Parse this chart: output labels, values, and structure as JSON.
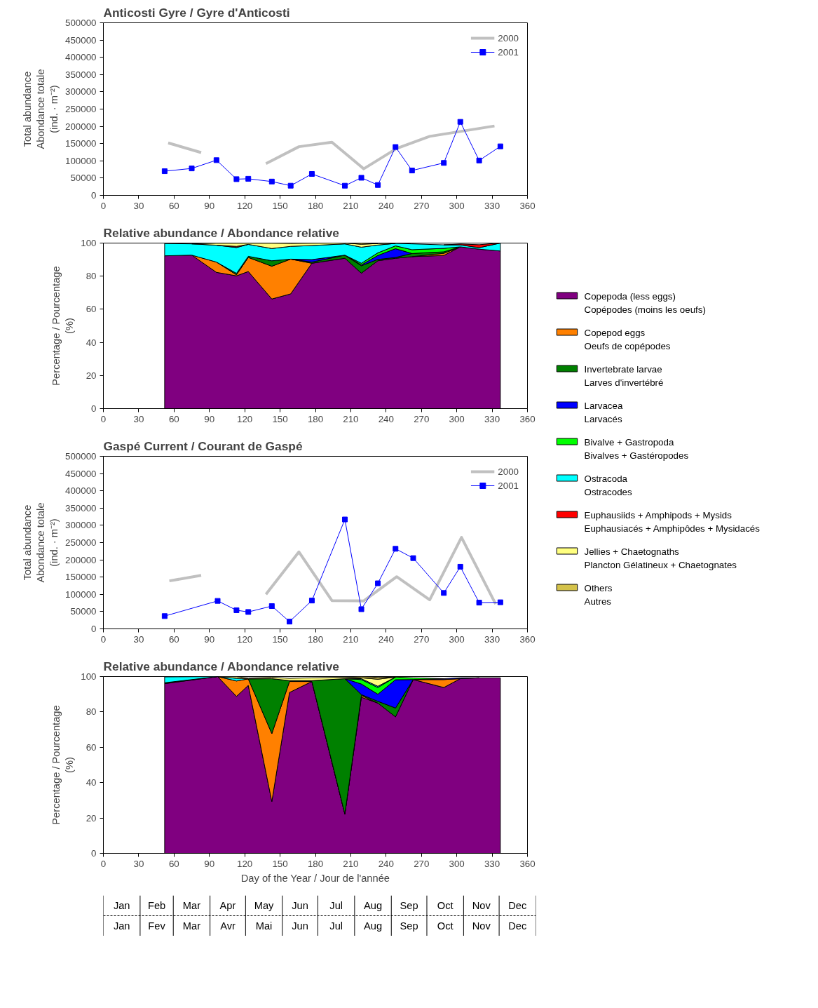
{
  "chart_data": [
    {
      "type": "line",
      "title": "Anticosti Gyre / Gyre d'Anticosti",
      "ylabel": "Total abundance\nAbondance totale\n(ind. · m⁻²)",
      "xlim": [
        0,
        360
      ],
      "xticks": [
        0,
        30,
        60,
        90,
        120,
        150,
        180,
        210,
        240,
        270,
        300,
        330,
        360
      ],
      "ylim": [
        0,
        500000
      ],
      "yticks": [
        0,
        50000,
        100000,
        150000,
        200000,
        250000,
        300000,
        350000,
        400000,
        450000,
        500000
      ],
      "legend": "top right",
      "series": [
        {
          "name": "2000",
          "color": "#c0c0c0",
          "marker": "none",
          "x": [
            55,
            83,
            110,
            138,
            166,
            194,
            221,
            249,
            277,
            332
          ],
          "values": [
            152000,
            124000,
            null,
            92000,
            141000,
            154000,
            77000,
            136000,
            171000,
            201000
          ]
        },
        {
          "name": "2001",
          "color": "#0000ff",
          "marker": "square",
          "x": [
            52,
            75,
            96,
            113,
            123,
            143,
            159,
            177,
            205,
            219,
            233,
            248,
            262,
            289,
            303,
            319,
            337
          ],
          "values": [
            70000,
            78000,
            102000,
            47000,
            48000,
            40000,
            28000,
            62000,
            28000,
            51000,
            30000,
            140000,
            72000,
            94000,
            213000,
            101000,
            142000
          ]
        }
      ]
    },
    {
      "type": "area",
      "stacked": true,
      "title": "Relative abundance / Abondance relative",
      "ylabel": "Percentage / Pourcentage\n(%)",
      "xlim": [
        0,
        360
      ],
      "xticks": [
        0,
        30,
        60,
        90,
        120,
        150,
        180,
        210,
        240,
        270,
        300,
        330,
        360
      ],
      "ylim": [
        0,
        100
      ],
      "yticks": [
        0,
        20,
        40,
        60,
        80,
        100
      ],
      "legend": "right",
      "x": [
        52,
        75,
        96,
        113,
        123,
        143,
        159,
        177,
        205,
        219,
        233,
        248,
        262,
        289,
        303,
        319,
        337
      ],
      "series": [
        {
          "name": "Copepoda (less eggs)\nCopépodes (moins les oeufs)",
          "color": "#800080",
          "values": [
            92.3,
            92.7,
            82.3,
            80.2,
            82.8,
            66.2,
            69.3,
            87.8,
            90.8,
            81.8,
            89.3,
            90.8,
            91.8,
            92.5,
            97.7,
            96.3,
            95.2
          ]
        },
        {
          "name": "Copepod eggs\nOeufs de copépodes",
          "color": "#ff8000",
          "values": [
            null,
            0,
            6.2,
            0.6,
            8.5,
            19.8,
            21,
            0,
            null,
            null,
            null,
            null,
            0,
            1.3,
            0,
            null,
            null
          ]
        },
        {
          "name": "Invertebrate larvae\nLarves d'invertébré",
          "color": "#008000",
          "values": [
            null,
            null,
            0,
            0.9,
            0.7,
            3.3,
            0,
            0.7,
            1.9,
            4.5,
            0.8,
            0.5,
            1.9,
            0.9,
            0,
            null,
            null
          ]
        },
        {
          "name": "Larvacea\nLarvacés",
          "color": "#0000ff",
          "values": [
            null,
            null,
            null,
            null,
            null,
            null,
            0,
            1.5,
            0,
            0.5,
            2.4,
            5.3,
            0,
            null,
            null,
            null,
            null
          ]
        },
        {
          "name": "Bivalve + Gastropoda\nBivalves + Gastéropodes",
          "color": "#00ff00",
          "values": [
            null,
            null,
            null,
            null,
            null,
            null,
            null,
            null,
            0,
            1.0,
            1.6,
            1.7,
            2.3,
            2.1,
            0,
            null,
            null
          ]
        },
        {
          "name": "Ostracoda\nOstracodes",
          "color": "#00ffff",
          "values": [
            7.4,
            6.8,
            10.2,
            15.6,
            7.2,
            7.4,
            7.7,
            8.5,
            6.8,
            9.7,
            4.7,
            1.5,
            3.5,
            2.1,
            1.2,
            0.9,
            4.8
          ]
        },
        {
          "name": "Euphausiids + Amphipods + Mysids\nEuphausiacés + Amphipôdes + Mysidacés",
          "color": "#ff0000",
          "values": [
            null,
            null,
            0,
            0.7,
            0,
            null,
            null,
            null,
            null,
            null,
            null,
            null,
            null,
            0,
            0.5,
            1.8,
            0
          ]
        },
        {
          "name": "Jellies + Chaetognaths\nPlancton Gélatineux + Chaetognates",
          "color": "#ffff80",
          "values": [
            null,
            0,
            1.2,
            1.9,
            0.7,
            3.2,
            1.8,
            1.4,
            0.5,
            1.8,
            0.9,
            0,
            null,
            null,
            null,
            null,
            null
          ]
        },
        {
          "name": "Others\nAutres",
          "color": "#d4c24a",
          "values": [
            null,
            null,
            null,
            null,
            null,
            null,
            null,
            null,
            0,
            0.7,
            0,
            null,
            null,
            null,
            null,
            null,
            null
          ]
        }
      ]
    },
    {
      "type": "line",
      "title": "Gaspé Current / Courant de Gaspé",
      "ylabel": "Total abundance\nAbondance totale\n(ind. · m⁻²)",
      "xlim": [
        0,
        360
      ],
      "xticks": [
        0,
        30,
        60,
        90,
        120,
        150,
        180,
        210,
        240,
        270,
        300,
        330,
        360
      ],
      "ylim": [
        0,
        500000
      ],
      "yticks": [
        0,
        50000,
        100000,
        150000,
        200000,
        250000,
        300000,
        350000,
        400000,
        450000,
        500000
      ],
      "legend": "top right",
      "series": [
        {
          "name": "2000",
          "color": "#c0c0c0",
          "marker": "none",
          "x": [
            56,
            83,
            110,
            138,
            166,
            194,
            221,
            249,
            277,
            304,
            333
          ],
          "values": [
            139000,
            155000,
            null,
            100000,
            223000,
            82000,
            81000,
            151000,
            84000,
            265000,
            72000
          ]
        },
        {
          "name": "2001",
          "color": "#0000ff",
          "marker": "square",
          "x": [
            52,
            97,
            113,
            123,
            143,
            158,
            177,
            205,
            219,
            233,
            248,
            263,
            289,
            303,
            319,
            337
          ],
          "values": [
            37000,
            81000,
            54000,
            49000,
            66000,
            21000,
            82000,
            317000,
            57000,
            132000,
            232000,
            205000,
            104000,
            180000,
            76000,
            77000
          ]
        }
      ]
    },
    {
      "type": "area",
      "stacked": true,
      "title": "Relative abundance / Abondance relative",
      "ylabel": "Percentage / Pourcentage\n(%)",
      "xlabel": "Day of the Year / Jour de l'année",
      "xlim": [
        0,
        360
      ],
      "xticks": [
        0,
        30,
        60,
        90,
        120,
        150,
        180,
        210,
        240,
        270,
        300,
        330,
        360
      ],
      "ylim": [
        0,
        100
      ],
      "yticks": [
        0,
        20,
        40,
        60,
        80,
        100
      ],
      "x": [
        52,
        97,
        113,
        123,
        143,
        158,
        177,
        205,
        219,
        233,
        248,
        263,
        289,
        303,
        319,
        337
      ],
      "series": [
        {
          "color": "#800080",
          "values": [
            96,
            100,
            88.8,
            95,
            29.3,
            91,
            97.2,
            22.2,
            88.3,
            85,
            77.2,
            98.3,
            93.8,
            98.8,
            99.3,
            99.3
          ]
        },
        {
          "color": "#ff8000",
          "values": [
            null,
            0,
            8.7,
            3.7,
            38.4,
            6.2,
            0,
            0,
            1,
            0,
            null,
            0,
            4.5,
            0,
            null,
            null
          ]
        },
        {
          "color": "#008000",
          "values": [
            0.5,
            0,
            null,
            0,
            31.1,
            0.5,
            0.5,
            76.6,
            0.5,
            1,
            5,
            0,
            null,
            null,
            null,
            null
          ]
        },
        {
          "color": "#0000ff",
          "values": [
            null,
            null,
            null,
            null,
            null,
            null,
            null,
            0,
            6.0,
            4,
            16,
            0,
            0.5,
            0.5,
            0,
            null
          ]
        },
        {
          "color": "#00ff00",
          "values": [
            null,
            null,
            null,
            null,
            null,
            null,
            null,
            0,
            2.5,
            3.8,
            1.5,
            1,
            0,
            null,
            null,
            null
          ]
        },
        {
          "color": "#00ffff",
          "values": [
            3.3,
            0,
            1.5,
            0,
            null,
            null,
            null,
            0,
            0.5,
            0.7,
            0,
            null,
            null,
            null,
            null,
            null
          ]
        },
        {
          "color": "#ffff80",
          "values": [
            null,
            0,
            0.9,
            0.5,
            0.8,
            1.3,
            1.6,
            0.8,
            0.5,
            4,
            0,
            null,
            null,
            null,
            null,
            null
          ]
        },
        {
          "color": "#d4c24a",
          "values": [
            null,
            null,
            null,
            null,
            null,
            null,
            null,
            0,
            0.7,
            1,
            0,
            null,
            null,
            null,
            null,
            null
          ]
        }
      ],
      "annotations": [
        "Jan",
        "Feb",
        "Mar",
        "Apr",
        "May",
        "Jun",
        "Jul",
        "Aug",
        "Sep",
        "Oct",
        "Nov",
        "Dec",
        "Jan",
        "Fev",
        "Mar",
        "Avr",
        "Mai",
        "Jun",
        "Jul",
        "Aug",
        "Sep",
        "Oct",
        "Nov",
        "Dec"
      ]
    }
  ]
}
